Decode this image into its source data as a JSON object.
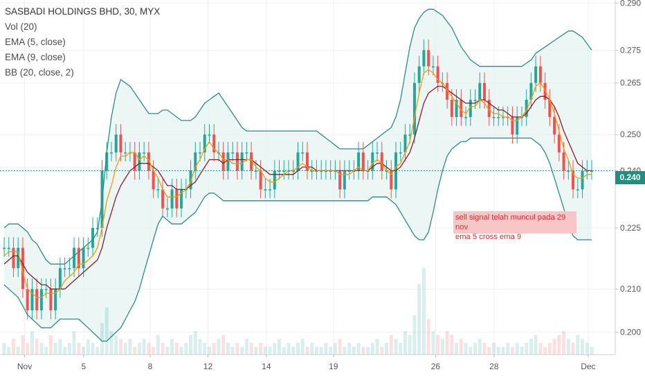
{
  "legend": {
    "title": "SASBADI HOLDINGS BHD, 30, MYX",
    "vol": "Vol (20)",
    "ema5": "EMA (5, close)",
    "ema9": "EMA (9, close)",
    "bb": "BB (20, close, 2)"
  },
  "annotation": {
    "line1": "sell signal telah muncul pada 29 nov",
    "line2": "ema 5 cross ema 9"
  },
  "current_price_label": "0.240",
  "colors": {
    "up": "#26a69a",
    "down": "#ef5350",
    "bb": "#2e8b80",
    "bb_fill": "#e3f2f1",
    "ema5": "#ff9800",
    "ema9": "#8b1a2b",
    "annotation_bg": "#f7c6c6",
    "annotation_text": "#e0282a",
    "price_line": "#1f8f7f"
  },
  "chart_data": {
    "type": "candlestick",
    "y_axis": {
      "ticks": [
        "0.200",
        "0.210",
        "0.225",
        "0.240",
        "0.250",
        "0.265",
        "0.275",
        "0.290"
      ],
      "ylim": [
        0.195,
        0.291
      ],
      "scale": "log"
    },
    "x_axis": {
      "ticks": [
        "Nov",
        "5",
        "8",
        "12",
        "14",
        "19",
        "26",
        "28",
        "Dec"
      ]
    },
    "last_price": 0.24,
    "grid": true,
    "close": [
      0.22,
      0.22,
      0.215,
      0.22,
      0.21,
      0.205,
      0.21,
      0.205,
      0.21,
      0.21,
      0.205,
      0.21,
      0.215,
      0.215,
      0.215,
      0.22,
      0.215,
      0.22,
      0.22,
      0.225,
      0.225,
      0.24,
      0.245,
      0.245,
      0.25,
      0.245,
      0.245,
      0.245,
      0.24,
      0.245,
      0.245,
      0.24,
      0.235,
      0.235,
      0.23,
      0.23,
      0.235,
      0.23,
      0.235,
      0.235,
      0.24,
      0.245,
      0.245,
      0.25,
      0.25,
      0.245,
      0.245,
      0.24,
      0.245,
      0.245,
      0.24,
      0.245,
      0.245,
      0.24,
      0.24,
      0.235,
      0.235,
      0.235,
      0.24,
      0.24,
      0.24,
      0.24,
      0.24,
      0.245,
      0.245,
      0.24,
      0.24,
      0.24,
      0.24,
      0.24,
      0.24,
      0.24,
      0.235,
      0.24,
      0.24,
      0.24,
      0.245,
      0.24,
      0.24,
      0.245,
      0.245,
      0.24,
      0.24,
      0.235,
      0.245,
      0.245,
      0.25,
      0.25,
      0.265,
      0.27,
      0.275,
      0.27,
      0.27,
      0.265,
      0.265,
      0.26,
      0.255,
      0.26,
      0.255,
      0.255,
      0.26,
      0.26,
      0.265,
      0.26,
      0.255,
      0.255,
      0.255,
      0.255,
      0.255,
      0.25,
      0.255,
      0.255,
      0.26,
      0.265,
      0.27,
      0.265,
      0.26,
      0.255,
      0.25,
      0.245,
      0.24,
      0.24,
      0.235,
      0.235,
      0.24,
      0.24,
      0.24
    ],
    "ema5": [
      0.218,
      0.219,
      0.219,
      0.219,
      0.214,
      0.21,
      0.209,
      0.208,
      0.208,
      0.209,
      0.209,
      0.209,
      0.21,
      0.212,
      0.213,
      0.214,
      0.216,
      0.216,
      0.217,
      0.218,
      0.22,
      0.225,
      0.232,
      0.236,
      0.241,
      0.244,
      0.244,
      0.245,
      0.245,
      0.243,
      0.244,
      0.243,
      0.24,
      0.238,
      0.235,
      0.233,
      0.233,
      0.233,
      0.234,
      0.235,
      0.237,
      0.241,
      0.243,
      0.246,
      0.248,
      0.246,
      0.245,
      0.243,
      0.243,
      0.242,
      0.242,
      0.242,
      0.243,
      0.243,
      0.241,
      0.24,
      0.238,
      0.237,
      0.237,
      0.238,
      0.239,
      0.24,
      0.24,
      0.241,
      0.242,
      0.241,
      0.24,
      0.24,
      0.24,
      0.24,
      0.24,
      0.24,
      0.239,
      0.239,
      0.239,
      0.24,
      0.241,
      0.24,
      0.24,
      0.242,
      0.243,
      0.242,
      0.24,
      0.239,
      0.241,
      0.242,
      0.245,
      0.248,
      0.255,
      0.262,
      0.268,
      0.269,
      0.268,
      0.266,
      0.265,
      0.263,
      0.261,
      0.259,
      0.257,
      0.256,
      0.258,
      0.258,
      0.26,
      0.259,
      0.257,
      0.256,
      0.256,
      0.255,
      0.255,
      0.254,
      0.254,
      0.255,
      0.257,
      0.26,
      0.264,
      0.265,
      0.263,
      0.26,
      0.256,
      0.251,
      0.246,
      0.243,
      0.239,
      0.238,
      0.238,
      0.239,
      0.239
    ],
    "ema9": [
      0.216,
      0.217,
      0.218,
      0.218,
      0.216,
      0.214,
      0.213,
      0.212,
      0.211,
      0.211,
      0.21,
      0.21,
      0.21,
      0.21,
      0.211,
      0.212,
      0.213,
      0.214,
      0.215,
      0.216,
      0.217,
      0.22,
      0.225,
      0.229,
      0.233,
      0.236,
      0.238,
      0.24,
      0.241,
      0.242,
      0.242,
      0.242,
      0.241,
      0.24,
      0.238,
      0.236,
      0.236,
      0.235,
      0.235,
      0.235,
      0.236,
      0.237,
      0.239,
      0.241,
      0.243,
      0.243,
      0.243,
      0.242,
      0.243,
      0.243,
      0.243,
      0.243,
      0.243,
      0.243,
      0.242,
      0.241,
      0.24,
      0.239,
      0.239,
      0.239,
      0.239,
      0.239,
      0.239,
      0.24,
      0.241,
      0.241,
      0.241,
      0.24,
      0.24,
      0.24,
      0.24,
      0.24,
      0.24,
      0.24,
      0.24,
      0.24,
      0.24,
      0.24,
      0.24,
      0.241,
      0.242,
      0.242,
      0.241,
      0.24,
      0.24,
      0.241,
      0.243,
      0.245,
      0.249,
      0.254,
      0.259,
      0.262,
      0.263,
      0.264,
      0.264,
      0.263,
      0.262,
      0.261,
      0.26,
      0.259,
      0.259,
      0.259,
      0.26,
      0.26,
      0.259,
      0.258,
      0.257,
      0.257,
      0.256,
      0.255,
      0.255,
      0.255,
      0.256,
      0.258,
      0.26,
      0.261,
      0.261,
      0.26,
      0.258,
      0.255,
      0.251,
      0.248,
      0.245,
      0.242,
      0.241,
      0.24,
      0.24
    ],
    "bb_upper": [
      0.225,
      0.226,
      0.226,
      0.226,
      0.225,
      0.224,
      0.222,
      0.221,
      0.219,
      0.217,
      0.216,
      0.216,
      0.216,
      0.216,
      0.217,
      0.218,
      0.219,
      0.22,
      0.221,
      0.222,
      0.224,
      0.232,
      0.245,
      0.255,
      0.262,
      0.266,
      0.265,
      0.264,
      0.262,
      0.26,
      0.258,
      0.256,
      0.256,
      0.256,
      0.257,
      0.257,
      0.256,
      0.255,
      0.254,
      0.254,
      0.254,
      0.255,
      0.257,
      0.259,
      0.26,
      0.261,
      0.262,
      0.26,
      0.258,
      0.256,
      0.254,
      0.252,
      0.251,
      0.251,
      0.251,
      0.251,
      0.251,
      0.251,
      0.251,
      0.251,
      0.251,
      0.251,
      0.251,
      0.251,
      0.251,
      0.251,
      0.251,
      0.251,
      0.25,
      0.249,
      0.248,
      0.247,
      0.246,
      0.246,
      0.246,
      0.246,
      0.246,
      0.246,
      0.247,
      0.248,
      0.249,
      0.25,
      0.251,
      0.252,
      0.255,
      0.26,
      0.268,
      0.276,
      0.282,
      0.285,
      0.287,
      0.288,
      0.288,
      0.287,
      0.286,
      0.284,
      0.282,
      0.279,
      0.276,
      0.274,
      0.272,
      0.271,
      0.27,
      0.27,
      0.27,
      0.27,
      0.27,
      0.27,
      0.27,
      0.27,
      0.27,
      0.27,
      0.271,
      0.272,
      0.274,
      0.275,
      0.276,
      0.277,
      0.278,
      0.279,
      0.28,
      0.281,
      0.281,
      0.28,
      0.279,
      0.277,
      0.275
    ],
    "bb_lower": [
      0.211,
      0.21,
      0.209,
      0.208,
      0.206,
      0.204,
      0.203,
      0.202,
      0.201,
      0.201,
      0.201,
      0.202,
      0.203,
      0.203,
      0.203,
      0.203,
      0.203,
      0.202,
      0.201,
      0.2,
      0.199,
      0.198,
      0.198,
      0.199,
      0.2,
      0.201,
      0.203,
      0.205,
      0.207,
      0.21,
      0.214,
      0.218,
      0.222,
      0.226,
      0.228,
      0.227,
      0.226,
      0.226,
      0.226,
      0.227,
      0.228,
      0.229,
      0.231,
      0.233,
      0.234,
      0.234,
      0.233,
      0.232,
      0.232,
      0.232,
      0.232,
      0.232,
      0.232,
      0.232,
      0.232,
      0.232,
      0.232,
      0.232,
      0.232,
      0.232,
      0.232,
      0.232,
      0.232,
      0.232,
      0.232,
      0.232,
      0.232,
      0.232,
      0.232,
      0.232,
      0.232,
      0.232,
      0.232,
      0.232,
      0.232,
      0.232,
      0.232,
      0.232,
      0.232,
      0.233,
      0.233,
      0.233,
      0.233,
      0.232,
      0.231,
      0.229,
      0.227,
      0.225,
      0.223,
      0.222,
      0.222,
      0.224,
      0.229,
      0.235,
      0.24,
      0.244,
      0.246,
      0.247,
      0.248,
      0.248,
      0.249,
      0.249,
      0.249,
      0.249,
      0.249,
      0.249,
      0.249,
      0.249,
      0.249,
      0.249,
      0.249,
      0.249,
      0.249,
      0.249,
      0.248,
      0.247,
      0.245,
      0.242,
      0.238,
      0.234,
      0.23,
      0.226,
      0.223,
      0.222,
      0.222,
      0.222,
      0.222
    ],
    "volume": [
      3,
      2,
      4,
      2,
      5,
      3,
      6,
      4,
      3,
      2,
      5,
      3,
      4,
      2,
      3,
      6,
      3,
      2,
      4,
      3,
      2,
      8,
      12,
      6,
      5,
      4,
      3,
      4,
      2,
      3,
      4,
      3,
      2,
      5,
      3,
      2,
      4,
      3,
      2,
      3,
      5,
      6,
      4,
      3,
      2,
      3,
      4,
      5,
      3,
      2,
      3,
      2,
      4,
      3,
      2,
      3,
      2,
      2,
      3,
      4,
      2,
      3,
      2,
      3,
      4,
      2,
      3,
      2,
      2,
      3,
      2,
      3,
      4,
      2,
      3,
      2,
      3,
      2,
      2,
      3,
      4,
      2,
      3,
      5,
      4,
      3,
      6,
      5,
      10,
      18,
      22,
      9,
      6,
      5,
      4,
      6,
      5,
      3,
      4,
      3,
      2,
      3,
      4,
      3,
      2,
      3,
      2,
      2,
      3,
      2,
      3,
      2,
      3,
      4,
      5,
      3,
      2,
      3,
      4,
      5,
      6,
      4,
      3,
      5,
      4,
      3,
      2
    ]
  }
}
